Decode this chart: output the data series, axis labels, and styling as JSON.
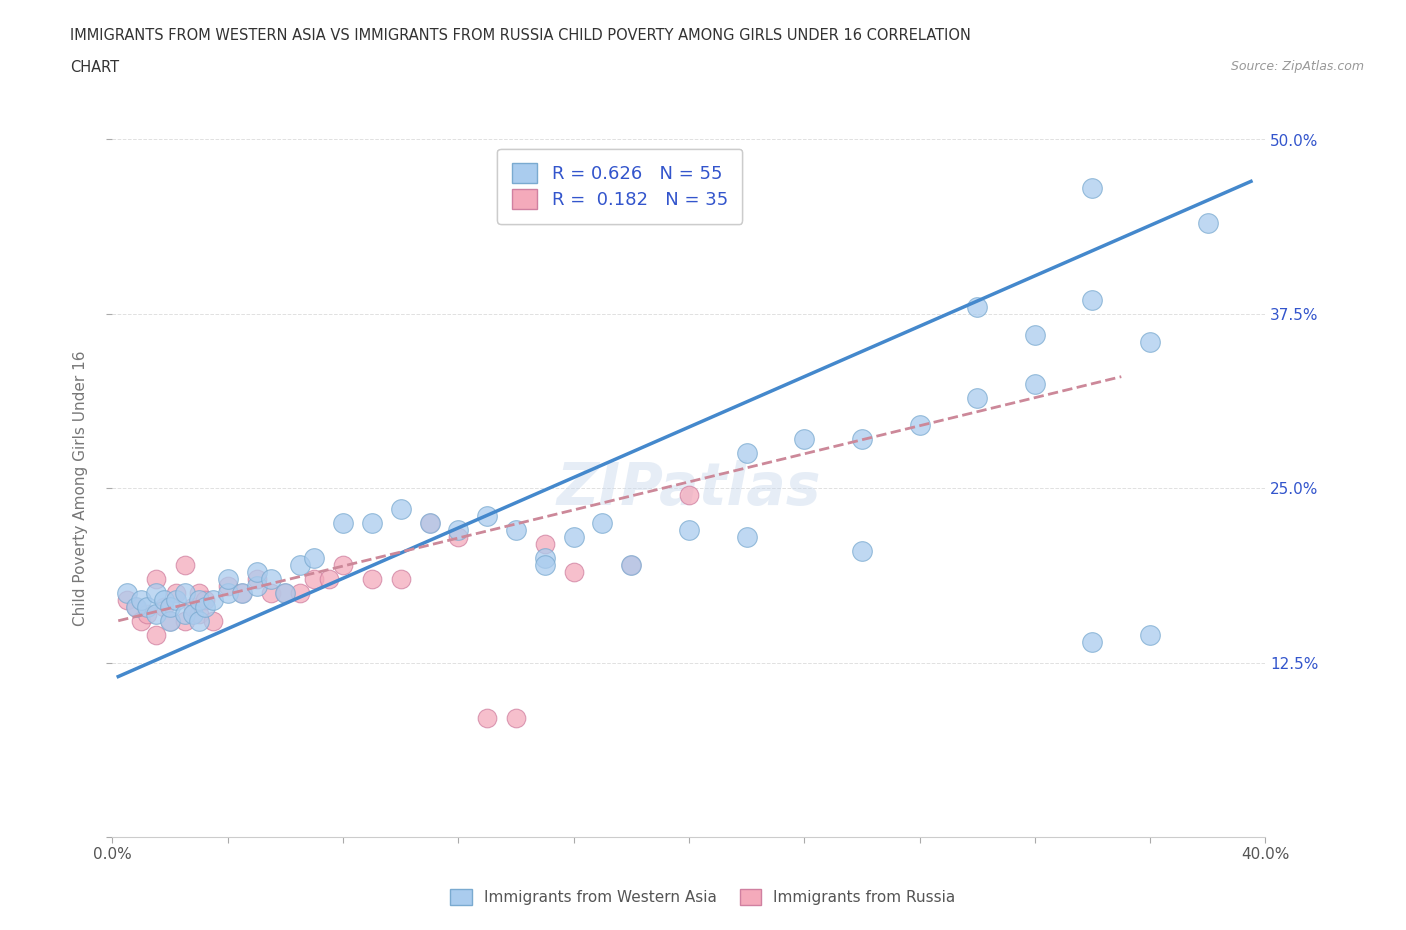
{
  "title_line1": "IMMIGRANTS FROM WESTERN ASIA VS IMMIGRANTS FROM RUSSIA CHILD POVERTY AMONG GIRLS UNDER 16 CORRELATION",
  "title_line2": "CHART",
  "source_text": "Source: ZipAtlas.com",
  "ylabel": "Child Poverty Among Girls Under 16",
  "xlim": [
    0.0,
    0.4
  ],
  "ylim": [
    0.0,
    0.5
  ],
  "xtick_positions": [
    0.0,
    0.04,
    0.08,
    0.12,
    0.16,
    0.2,
    0.24,
    0.28,
    0.32,
    0.36,
    0.4
  ],
  "xtick_labeled": {
    "0.0": "0.0%",
    "0.40": "40.0%"
  },
  "yticks": [
    0.0,
    0.125,
    0.25,
    0.375,
    0.5
  ],
  "ytick_labels": [
    "",
    "12.5%",
    "25.0%",
    "37.5%",
    "50.0%"
  ],
  "r_western_asia": 0.626,
  "n_western_asia": 55,
  "r_russia": 0.182,
  "n_russia": 35,
  "color_western_asia": "#aaccee",
  "color_russia": "#f4aabb",
  "color_edge_western_asia": "#7aaad0",
  "color_edge_russia": "#d080a0",
  "color_trend_western_asia": "#4488cc",
  "color_trend_russia": "#cc8899",
  "color_text_blue": "#3355cc",
  "color_tick_right": "#3355cc",
  "watermark_text": "ZIPatlas",
  "western_asia_x": [
    0.005,
    0.008,
    0.01,
    0.012,
    0.015,
    0.015,
    0.018,
    0.02,
    0.02,
    0.022,
    0.025,
    0.025,
    0.028,
    0.03,
    0.03,
    0.032,
    0.035,
    0.04,
    0.04,
    0.045,
    0.05,
    0.05,
    0.055,
    0.06,
    0.065,
    0.07,
    0.08,
    0.09,
    0.1,
    0.11,
    0.12,
    0.13,
    0.14,
    0.15,
    0.16,
    0.17,
    0.2,
    0.22,
    0.24,
    0.26,
    0.28,
    0.3,
    0.32,
    0.34,
    0.36,
    0.38,
    0.3,
    0.32,
    0.34,
    0.15,
    0.18,
    0.22,
    0.26,
    0.34,
    0.36
  ],
  "western_asia_y": [
    0.175,
    0.165,
    0.17,
    0.165,
    0.16,
    0.175,
    0.17,
    0.155,
    0.165,
    0.17,
    0.16,
    0.175,
    0.16,
    0.155,
    0.17,
    0.165,
    0.17,
    0.175,
    0.185,
    0.175,
    0.18,
    0.19,
    0.185,
    0.175,
    0.195,
    0.2,
    0.225,
    0.225,
    0.235,
    0.225,
    0.22,
    0.23,
    0.22,
    0.2,
    0.215,
    0.225,
    0.22,
    0.275,
    0.285,
    0.285,
    0.295,
    0.315,
    0.325,
    0.385,
    0.355,
    0.44,
    0.38,
    0.36,
    0.465,
    0.195,
    0.195,
    0.215,
    0.205,
    0.14,
    0.145
  ],
  "russia_x": [
    0.005,
    0.008,
    0.01,
    0.012,
    0.015,
    0.015,
    0.018,
    0.02,
    0.022,
    0.025,
    0.025,
    0.028,
    0.03,
    0.03,
    0.032,
    0.035,
    0.04,
    0.045,
    0.05,
    0.055,
    0.06,
    0.065,
    0.07,
    0.075,
    0.08,
    0.09,
    0.1,
    0.11,
    0.12,
    0.13,
    0.14,
    0.15,
    0.16,
    0.18,
    0.2
  ],
  "russia_y": [
    0.17,
    0.165,
    0.155,
    0.16,
    0.145,
    0.185,
    0.165,
    0.155,
    0.175,
    0.155,
    0.195,
    0.165,
    0.16,
    0.175,
    0.17,
    0.155,
    0.18,
    0.175,
    0.185,
    0.175,
    0.175,
    0.175,
    0.185,
    0.185,
    0.195,
    0.185,
    0.185,
    0.225,
    0.215,
    0.085,
    0.085,
    0.21,
    0.19,
    0.195,
    0.245
  ],
  "legend_labels": [
    "Immigrants from Western Asia",
    "Immigrants from Russia"
  ],
  "background_color": "#ffffff",
  "grid_color": "#dddddd"
}
